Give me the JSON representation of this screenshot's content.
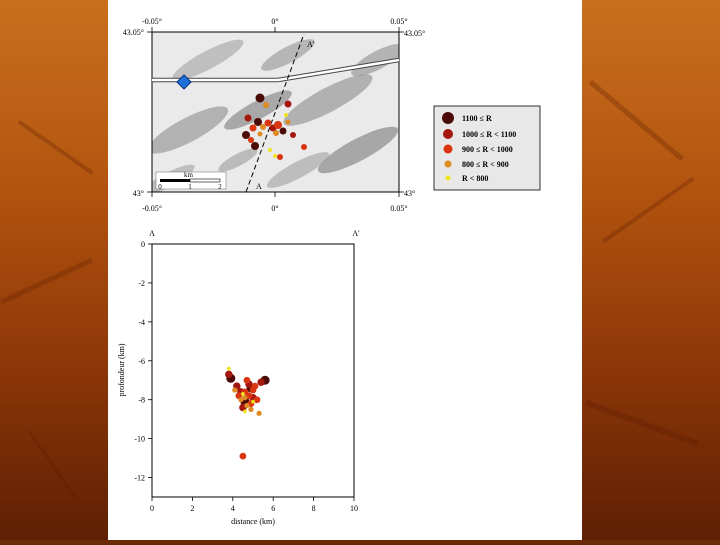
{
  "map": {
    "top_ticks": [
      "-0.05°",
      "0°",
      "0.05°"
    ],
    "bottom_ticks": [
      "-0.05°",
      "0°",
      "0.05°"
    ],
    "left_ticks": [
      "43.05°",
      "43°"
    ],
    "right_ticks": [
      "43.05°",
      "43°"
    ],
    "profile_start": "A",
    "profile_end": "A'",
    "scale_unit": "km",
    "scale_ticks": [
      "0",
      "1",
      "2"
    ],
    "station_color": "#1f6fd6"
  },
  "legend": {
    "items": [
      {
        "label": "1100 ≤ R",
        "color": "#4a0a06",
        "size": 6
      },
      {
        "label": "1000 ≤ R < 1100",
        "color": "#a3170f",
        "size": 5
      },
      {
        "label": "900 ≤ R < 1000",
        "color": "#d83510",
        "size": 4.5
      },
      {
        "label": "800 ≤ R < 900",
        "color": "#e08a22",
        "size": 3.5
      },
      {
        "label": "R < 800",
        "color": "#f0e31e",
        "size": 2.5
      }
    ]
  },
  "section": {
    "left_label": "A",
    "right_label": "A'",
    "ylabel": "profondeur (km)",
    "xlabel": "distance (km)"
  },
  "chart_data": {
    "type": "scatter",
    "x": [
      0,
      10
    ],
    "ylim": [
      -13,
      0
    ],
    "xlim": [
      0,
      10
    ],
    "xticks": [
      0,
      2,
      4,
      6,
      8,
      10
    ],
    "yticks": [
      0,
      -2,
      -4,
      -6,
      -8,
      -10,
      -12
    ],
    "xlabel": "distance (km)",
    "ylabel": "profondeur (km)",
    "series": [
      {
        "class": 0,
        "points": [
          [
            3.9,
            -6.9
          ],
          [
            4.9,
            -7.4
          ],
          [
            4.6,
            -8.1
          ],
          [
            5.6,
            -7.0
          ]
        ]
      },
      {
        "class": 1,
        "points": [
          [
            3.8,
            -6.7
          ],
          [
            4.4,
            -7.6
          ],
          [
            4.8,
            -7.2
          ],
          [
            5.0,
            -7.9
          ],
          [
            4.5,
            -8.4
          ],
          [
            5.4,
            -7.1
          ],
          [
            4.2,
            -7.3
          ]
        ]
      },
      {
        "class": 2,
        "points": [
          [
            4.7,
            -7.0
          ],
          [
            5.0,
            -7.5
          ],
          [
            4.9,
            -8.2
          ],
          [
            4.3,
            -7.8
          ],
          [
            5.2,
            -8.0
          ],
          [
            4.6,
            -7.6
          ],
          [
            4.5,
            -10.9
          ],
          [
            5.1,
            -7.3
          ],
          [
            4.8,
            -7.8
          ]
        ]
      },
      {
        "class": 3,
        "points": [
          [
            4.4,
            -8.0
          ],
          [
            4.7,
            -8.3
          ],
          [
            5.3,
            -8.7
          ],
          [
            4.1,
            -7.5
          ],
          [
            4.6,
            -7.9
          ],
          [
            4.9,
            -8.5
          ]
        ]
      },
      {
        "class": 4,
        "points": [
          [
            3.8,
            -6.4
          ],
          [
            4.5,
            -7.7
          ],
          [
            4.6,
            -8.6
          ],
          [
            5.0,
            -8.1
          ]
        ]
      }
    ]
  }
}
